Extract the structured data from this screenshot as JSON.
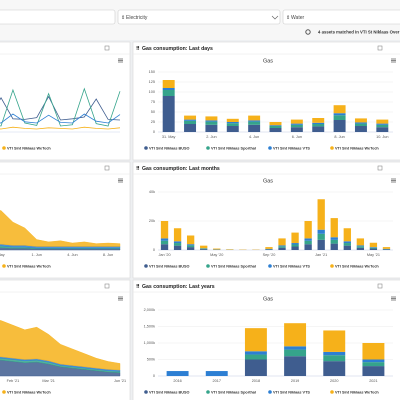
{
  "filters": {
    "electricity": "Electricity",
    "water": "Water",
    "status": "4 assets matched in VTI St Niklaas Over"
  },
  "chart_data": [
    {
      "type": "line",
      "categories": [
        null,
        null,
        null,
        null,
        null,
        null,
        null,
        null,
        null,
        null,
        null,
        null,
        null,
        null,
        null,
        null,
        null,
        null,
        null,
        null,
        null,
        null,
        null,
        null,
        null,
        null,
        null,
        null,
        null,
        null
      ],
      "ylim": [
        0,
        100
      ],
      "grid": false,
      "series": [
        {
          "name": "VTI Sint Niklaas BUSO",
          "color": "#3f5d8f",
          "values": [
            20,
            22,
            25,
            60,
            24,
            20,
            22,
            55,
            23,
            20,
            25,
            58,
            22,
            20,
            24,
            60,
            21,
            20,
            23,
            57,
            22,
            21,
            24,
            59,
            20,
            22,
            25,
            55,
            21,
            20
          ]
        },
        {
          "name": "VTI Sint Niklaas Sporthal",
          "color": "#35a48b",
          "values": [
            10,
            12,
            70,
            15,
            10,
            65,
            12,
            10,
            72,
            14,
            11,
            68,
            10,
            12,
            75,
            13,
            10,
            66,
            12,
            10,
            70,
            15,
            11,
            64,
            10,
            12,
            72,
            14,
            10,
            68
          ]
        },
        {
          "name": "VTI Sint Niklaas VTS",
          "color": "#2d7fd3",
          "values": [
            15,
            16,
            30,
            18,
            15,
            28,
            16,
            15,
            32,
            17,
            15,
            30,
            16,
            15,
            29,
            18,
            15,
            31,
            16,
            15,
            30,
            17,
            15,
            28,
            16,
            15,
            30,
            18,
            15,
            29
          ]
        },
        {
          "name": "VTI Sint Niklaas WeTech",
          "color": "#f6b11a",
          "values": [
            5,
            6,
            8,
            6,
            5,
            7,
            6,
            5,
            8,
            6,
            5,
            7,
            6,
            5,
            8,
            6,
            5,
            7,
            6,
            5,
            8,
            6,
            5,
            7,
            6,
            5,
            8,
            6,
            5,
            7
          ]
        }
      ]
    },
    {
      "type": "bar",
      "stacked": true,
      "title": "Gas consumption: Last days",
      "subtitle": "Gas",
      "grid": true,
      "categories": [
        "31. May",
        null,
        "2. Jun",
        null,
        "4. Jun",
        null,
        "6. Jun",
        null,
        "8. Jun",
        null,
        "10. Jun"
      ],
      "ylim": [
        0,
        150
      ],
      "yticks": [
        0,
        25,
        50,
        75,
        100,
        125,
        150
      ],
      "series": [
        {
          "name": "VTI Sint Niklaas BUSO",
          "color": "#3f5d8f",
          "values": [
            90,
            20,
            18,
            15,
            18,
            10,
            12,
            14,
            30,
            15,
            12
          ]
        },
        {
          "name": "VTI Sint Niklaas Sporthal",
          "color": "#35a48b",
          "values": [
            15,
            8,
            8,
            7,
            8,
            5,
            6,
            6,
            12,
            6,
            6
          ]
        },
        {
          "name": "VTI Sint Niklaas VTS",
          "color": "#2d7fd3",
          "values": [
            5,
            3,
            3,
            3,
            3,
            2,
            3,
            3,
            5,
            3,
            3
          ]
        },
        {
          "name": "VTI Sint Niklaas WeTech",
          "color": "#f6b11a",
          "values": [
            20,
            10,
            10,
            8,
            12,
            8,
            10,
            12,
            20,
            10,
            10
          ]
        }
      ]
    },
    {
      "type": "area",
      "stacked": true,
      "grid": false,
      "ylim": [
        0,
        100
      ],
      "categories": [
        null,
        null,
        null,
        null,
        null,
        null,
        null,
        null,
        null,
        null,
        null,
        null,
        null,
        null,
        null,
        null,
        null,
        null,
        null,
        "May",
        null,
        null,
        "1. Jun",
        null,
        null,
        "4. Jun",
        null,
        null,
        "8. Jun",
        null
      ],
      "series": [
        {
          "name": "VTI Sint Niklaas BUSO",
          "color": "#3f5d8f",
          "values": [
            4,
            4,
            5,
            4,
            5,
            4,
            4,
            5,
            4,
            4,
            5,
            4,
            4,
            5,
            4,
            4,
            5,
            4,
            4,
            4,
            3,
            3,
            2,
            2,
            2,
            2,
            2,
            2,
            2,
            2
          ]
        },
        {
          "name": "VTI Sint Niklaas Sporthal",
          "color": "#35a48b",
          "values": [
            3,
            3,
            3,
            3,
            3,
            3,
            3,
            3,
            3,
            3,
            3,
            3,
            3,
            3,
            3,
            3,
            3,
            3,
            3,
            3,
            2,
            2,
            1,
            1,
            1,
            1,
            1,
            1,
            1,
            1
          ]
        },
        {
          "name": "VTI Sint Niklaas VTS",
          "color": "#2d7fd3",
          "values": [
            3,
            3,
            3,
            3,
            3,
            3,
            3,
            3,
            3,
            3,
            3,
            3,
            3,
            3,
            3,
            3,
            3,
            3,
            3,
            3,
            3,
            3,
            3,
            3,
            3,
            3,
            3,
            3,
            3,
            3
          ]
        },
        {
          "name": "VTI Sint Niklaas WeTech",
          "color": "#f6b11a",
          "values": [
            60,
            62,
            58,
            65,
            70,
            60,
            55,
            68,
            62,
            58,
            64,
            60,
            56,
            66,
            60,
            58,
            62,
            55,
            60,
            58,
            40,
            30,
            12,
            8,
            10,
            6,
            8,
            5,
            6,
            5
          ]
        }
      ]
    },
    {
      "type": "bar",
      "stacked": true,
      "title": "Gas consumption: Last months",
      "subtitle": "Gas",
      "grid": true,
      "categories": [
        "Jan '20",
        null,
        null,
        null,
        "May '20",
        null,
        null,
        null,
        "Sep '20",
        null,
        null,
        null,
        "Jan '21",
        null,
        null,
        null,
        "May '21",
        null
      ],
      "ylim": [
        0,
        40000
      ],
      "yticks": [
        0,
        {
          "value": 20000,
          "label": "20k"
        },
        {
          "value": 40000,
          "label": "40k"
        }
      ],
      "series": [
        {
          "name": "VTI Sint Niklaas BUSO",
          "color": "#3f5d8f",
          "values": [
            4000,
            3000,
            2000,
            600,
            200,
            100,
            100,
            100,
            400,
            1600,
            2400,
            4000,
            7000,
            4400,
            3000,
            1600,
            1000,
            400
          ]
        },
        {
          "name": "VTI Sint Niklaas Sporthal",
          "color": "#35a48b",
          "values": [
            2400,
            1800,
            1200,
            400,
            100,
            100,
            0,
            0,
            200,
            1000,
            1400,
            2400,
            4200,
            2600,
            1800,
            1000,
            600,
            200
          ]
        },
        {
          "name": "VTI Sint Niklaas VTS",
          "color": "#2d7fd3",
          "values": [
            1600,
            1200,
            800,
            200,
            100,
            0,
            0,
            0,
            200,
            600,
            1000,
            1600,
            2800,
            1800,
            1200,
            600,
            400,
            200
          ]
        },
        {
          "name": "VTI Sint Niklaas WeTech",
          "color": "#f6b11a",
          "values": [
            12000,
            9000,
            6000,
            1800,
            600,
            300,
            200,
            200,
            1200,
            4800,
            7200,
            12000,
            21000,
            13200,
            9000,
            4800,
            3000,
            1200
          ]
        }
      ]
    },
    {
      "type": "area",
      "stacked": true,
      "grid": false,
      "ylim": [
        0,
        100
      ],
      "categories": [
        null,
        null,
        null,
        null,
        null,
        null,
        null,
        null,
        null,
        null,
        null,
        null,
        null,
        null,
        null,
        null,
        null,
        null,
        null,
        null,
        "Feb '21",
        null,
        null,
        "Mar '21",
        null,
        null,
        null,
        null,
        null,
        "Jun '21"
      ],
      "series": [
        {
          "name": "VTI Sint Niklaas BUSO",
          "color": "#3f5d8f",
          "values": [
            15,
            16,
            18,
            17,
            20,
            22,
            21,
            19,
            18,
            20,
            22,
            24,
            23,
            21,
            20,
            22,
            24,
            26,
            25,
            24,
            22,
            20,
            21,
            18,
            14,
            12,
            10,
            8,
            6,
            5
          ]
        },
        {
          "name": "VTI Sint Niklaas Sporthal",
          "color": "#35a48b",
          "values": [
            3,
            3,
            3,
            3,
            3,
            3,
            3,
            3,
            3,
            3,
            3,
            3,
            3,
            3,
            3,
            3,
            3,
            3,
            3,
            3,
            3,
            3,
            3,
            3,
            2,
            2,
            2,
            2,
            2,
            2
          ]
        },
        {
          "name": "VTI Sint Niklaas VTS",
          "color": "#2d7fd3",
          "values": [
            2,
            2,
            2,
            2,
            2,
            2,
            2,
            2,
            2,
            2,
            2,
            2,
            2,
            2,
            2,
            2,
            2,
            2,
            2,
            2,
            2,
            2,
            2,
            2,
            2,
            2,
            2,
            2,
            2,
            2
          ]
        },
        {
          "name": "VTI Sint Niklaas WeTech",
          "color": "#f6b11a",
          "values": [
            30,
            35,
            40,
            38,
            45,
            50,
            48,
            42,
            40,
            45,
            50,
            55,
            52,
            48,
            45,
            50,
            55,
            60,
            58,
            55,
            50,
            45,
            48,
            40,
            30,
            25,
            20,
            15,
            12,
            10
          ]
        }
      ]
    },
    {
      "type": "bar",
      "stacked": true,
      "title": "Gas consumption: Last years",
      "subtitle": "Gas",
      "grid": true,
      "categories": [
        "2016",
        "2017",
        "2018",
        "2019",
        "2020",
        "2021"
      ],
      "ylim": [
        0,
        2000000
      ],
      "yticks": [
        0,
        {
          "value": 500000,
          "label": "500k"
        },
        {
          "value": 1000000,
          "label": "1,000k"
        },
        {
          "value": 1500000,
          "label": "1,500k"
        },
        {
          "value": 2000000,
          "label": "2,000k"
        }
      ],
      "series": [
        {
          "name": "VTI Sint Niklaas BUSO",
          "color": "#3f5d8f",
          "values": [
            0,
            0,
            500000,
            600000,
            450000,
            300000
          ]
        },
        {
          "name": "VTI Sint Niklaas Sporthal",
          "color": "#35a48b",
          "values": [
            0,
            0,
            150000,
            200000,
            180000,
            120000
          ]
        },
        {
          "name": "VTI Sint Niklaas VTS",
          "color": "#2d7fd3",
          "values": [
            150000,
            150000,
            100000,
            100000,
            100000,
            80000
          ]
        },
        {
          "name": "VTI Sint Niklaas WeTech",
          "color": "#f6b11a",
          "values": [
            0,
            0,
            700000,
            700000,
            650000,
            500000
          ]
        }
      ]
    }
  ]
}
